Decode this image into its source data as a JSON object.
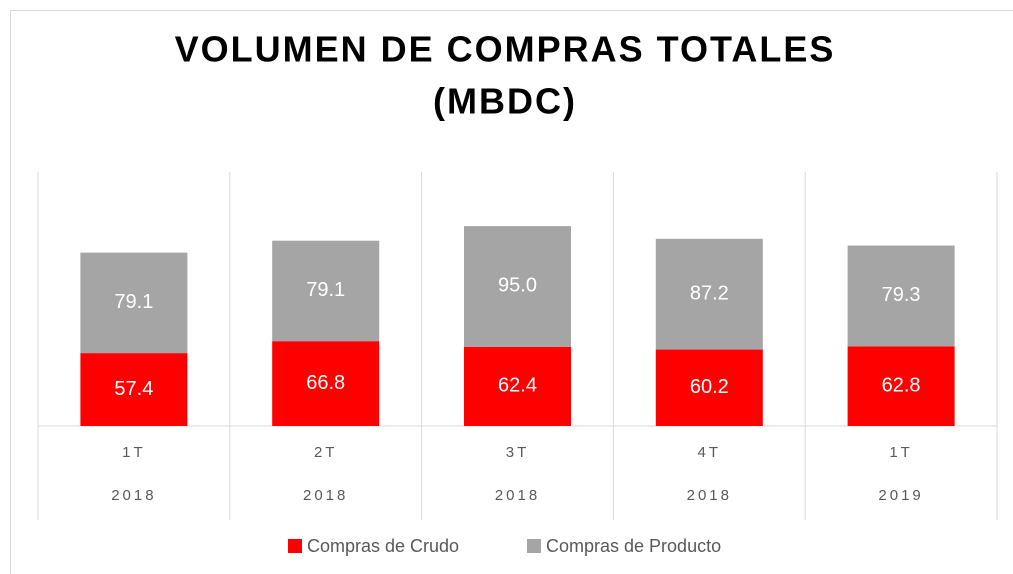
{
  "chart_data": {
    "type": "stacked_bar",
    "title": [
      "VOLUMEN DE COMPRAS TOTALES",
      "(MBDC)"
    ],
    "categories": [
      {
        "quarter": "1T",
        "year": "2018"
      },
      {
        "quarter": "2T",
        "year": "2018"
      },
      {
        "quarter": "3T",
        "year": "2018"
      },
      {
        "quarter": "4T",
        "year": "2018"
      },
      {
        "quarter": "1T",
        "year": "2019"
      }
    ],
    "series": [
      {
        "name": "Compras de Crudo",
        "color": "#ff0000",
        "values": [
          57.4,
          66.8,
          62.4,
          60.2,
          62.8
        ]
      },
      {
        "name": "Compras de Producto",
        "color": "#a5a5a5",
        "values": [
          79.1,
          79.1,
          95.0,
          87.2,
          79.3
        ]
      }
    ],
    "value_labels": [
      [
        "57.4",
        "66.8",
        "62.4",
        "60.2",
        "62.8"
      ],
      [
        "79.1",
        "79.1",
        "95.0",
        "87.2",
        "79.3"
      ]
    ],
    "ylim": [
      0,
      200
    ],
    "legend": "bottom"
  }
}
